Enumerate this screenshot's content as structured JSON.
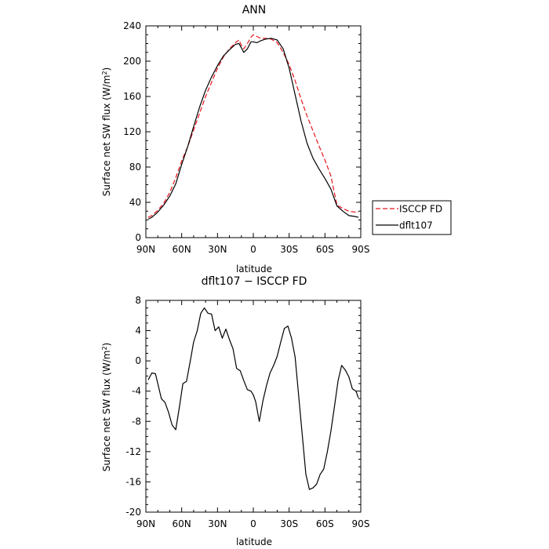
{
  "chart_data": [
    {
      "type": "line",
      "title": "ANN",
      "xlabel": "latitude",
      "ylabel": "Surface net SW flux (W/m²)",
      "ylim": [
        0,
        240
      ],
      "yticks": [
        0,
        40,
        80,
        120,
        160,
        200,
        240
      ],
      "xticks": [
        {
          "value": -90,
          "label": "90N"
        },
        {
          "value": -60,
          "label": "60N"
        },
        {
          "value": -30,
          "label": "30N"
        },
        {
          "value": 0,
          "label": "0"
        },
        {
          "value": 30,
          "label": "30S"
        },
        {
          "value": 60,
          "label": "60S"
        },
        {
          "value": 90,
          "label": "90S"
        }
      ],
      "xlim": [
        -90,
        90
      ],
      "legend_position": "right",
      "series": [
        {
          "name": "ISCCP FD",
          "color": "#e8141b",
          "dash": "dashed",
          "x": [
            -88,
            -85,
            -80,
            -75,
            -70,
            -65,
            -60,
            -55,
            -50,
            -45,
            -40,
            -35,
            -30,
            -25,
            -20,
            -15,
            -12,
            -10,
            -8,
            -5,
            -2,
            0,
            3,
            6,
            10,
            15,
            20,
            25,
            30,
            35,
            40,
            45,
            50,
            55,
            60,
            65,
            70,
            75,
            80,
            85,
            88
          ],
          "y": [
            23,
            25,
            31,
            39,
            51,
            68,
            87,
            103,
            122,
            141,
            160,
            176,
            192,
            205,
            214,
            221,
            224,
            218,
            214,
            220,
            227,
            230,
            228,
            226,
            226,
            225,
            221,
            210,
            196,
            178,
            157,
            138,
            121,
            104,
            88,
            70,
            37,
            33,
            30,
            29,
            29
          ]
        },
        {
          "name": "dflt107",
          "color": "#000000",
          "dash": "solid",
          "x": [
            -88,
            -85,
            -80,
            -75,
            -70,
            -65,
            -60,
            -55,
            -50,
            -45,
            -40,
            -35,
            -30,
            -25,
            -20,
            -15,
            -12,
            -10,
            -8,
            -5,
            -2,
            0,
            3,
            6,
            10,
            15,
            20,
            25,
            30,
            35,
            40,
            45,
            50,
            55,
            60,
            65,
            70,
            75,
            80,
            85,
            88
          ],
          "y": [
            21,
            23,
            29,
            37,
            47,
            61,
            83,
            103,
            126,
            148,
            167,
            182,
            195,
            206,
            213,
            219,
            220,
            215,
            210,
            214,
            222,
            222,
            221,
            223,
            225,
            226,
            224,
            214,
            192,
            162,
            132,
            107,
            90,
            78,
            67,
            55,
            36,
            30,
            25,
            24,
            23
          ]
        }
      ]
    },
    {
      "type": "line",
      "title": "dflt107 − ISCCP FD",
      "xlabel": "latitude",
      "ylabel": "Surface net SW flux (W/m²)",
      "ylim": [
        -20,
        8
      ],
      "yticks": [
        -20,
        -16,
        -12,
        -8,
        -4,
        0,
        4,
        8
      ],
      "xticks": [
        {
          "value": -90,
          "label": "90N"
        },
        {
          "value": -60,
          "label": "60N"
        },
        {
          "value": -30,
          "label": "30N"
        },
        {
          "value": 0,
          "label": "0"
        },
        {
          "value": 30,
          "label": "30S"
        },
        {
          "value": 60,
          "label": "60S"
        },
        {
          "value": 90,
          "label": "90S"
        }
      ],
      "xlim": [
        -90,
        90
      ],
      "series": [
        {
          "name": "",
          "color": "#000000",
          "dash": "solid",
          "x": [
            -88,
            -85,
            -82,
            -80,
            -77,
            -74,
            -71,
            -68,
            -65,
            -62,
            -59,
            -56,
            -53,
            -50,
            -47,
            -44,
            -41,
            -38,
            -35,
            -32,
            -29,
            -26,
            -23,
            -20,
            -17,
            -14,
            -11,
            -8,
            -5,
            -2,
            0,
            2,
            5,
            8,
            11,
            14,
            17,
            20,
            23,
            26,
            29,
            32,
            35,
            38,
            41,
            44,
            47,
            50,
            53,
            56,
            59,
            62,
            65,
            68,
            71,
            74,
            77,
            80,
            83,
            86,
            88
          ],
          "y": [
            -2.5,
            -1.6,
            -1.7,
            -3,
            -5,
            -5.5,
            -6.8,
            -8.5,
            -9.1,
            -6.2,
            -3,
            -2.7,
            -0.2,
            2.5,
            4,
            6.3,
            7,
            6.3,
            6.2,
            4,
            4.5,
            3,
            4.2,
            2.8,
            1.6,
            -1,
            -1.3,
            -2.6,
            -3.8,
            -4,
            -4.5,
            -5.4,
            -8,
            -5.3,
            -3.3,
            -1.6,
            -0.6,
            0.6,
            2.5,
            4.3,
            4.6,
            3,
            0.5,
            -4.6,
            -9.8,
            -15,
            -17,
            -16.8,
            -16.3,
            -15,
            -14.3,
            -12,
            -9.3,
            -6,
            -2.6,
            -0.6,
            -1.2,
            -2.1,
            -3.7,
            -4,
            -4.9
          ]
        }
      ]
    }
  ],
  "legend": {
    "items": [
      {
        "label": "ISCCP FD",
        "color": "#e8141b",
        "dash": "dashed"
      },
      {
        "label": "dflt107",
        "color": "#000000",
        "dash": "solid"
      }
    ]
  }
}
